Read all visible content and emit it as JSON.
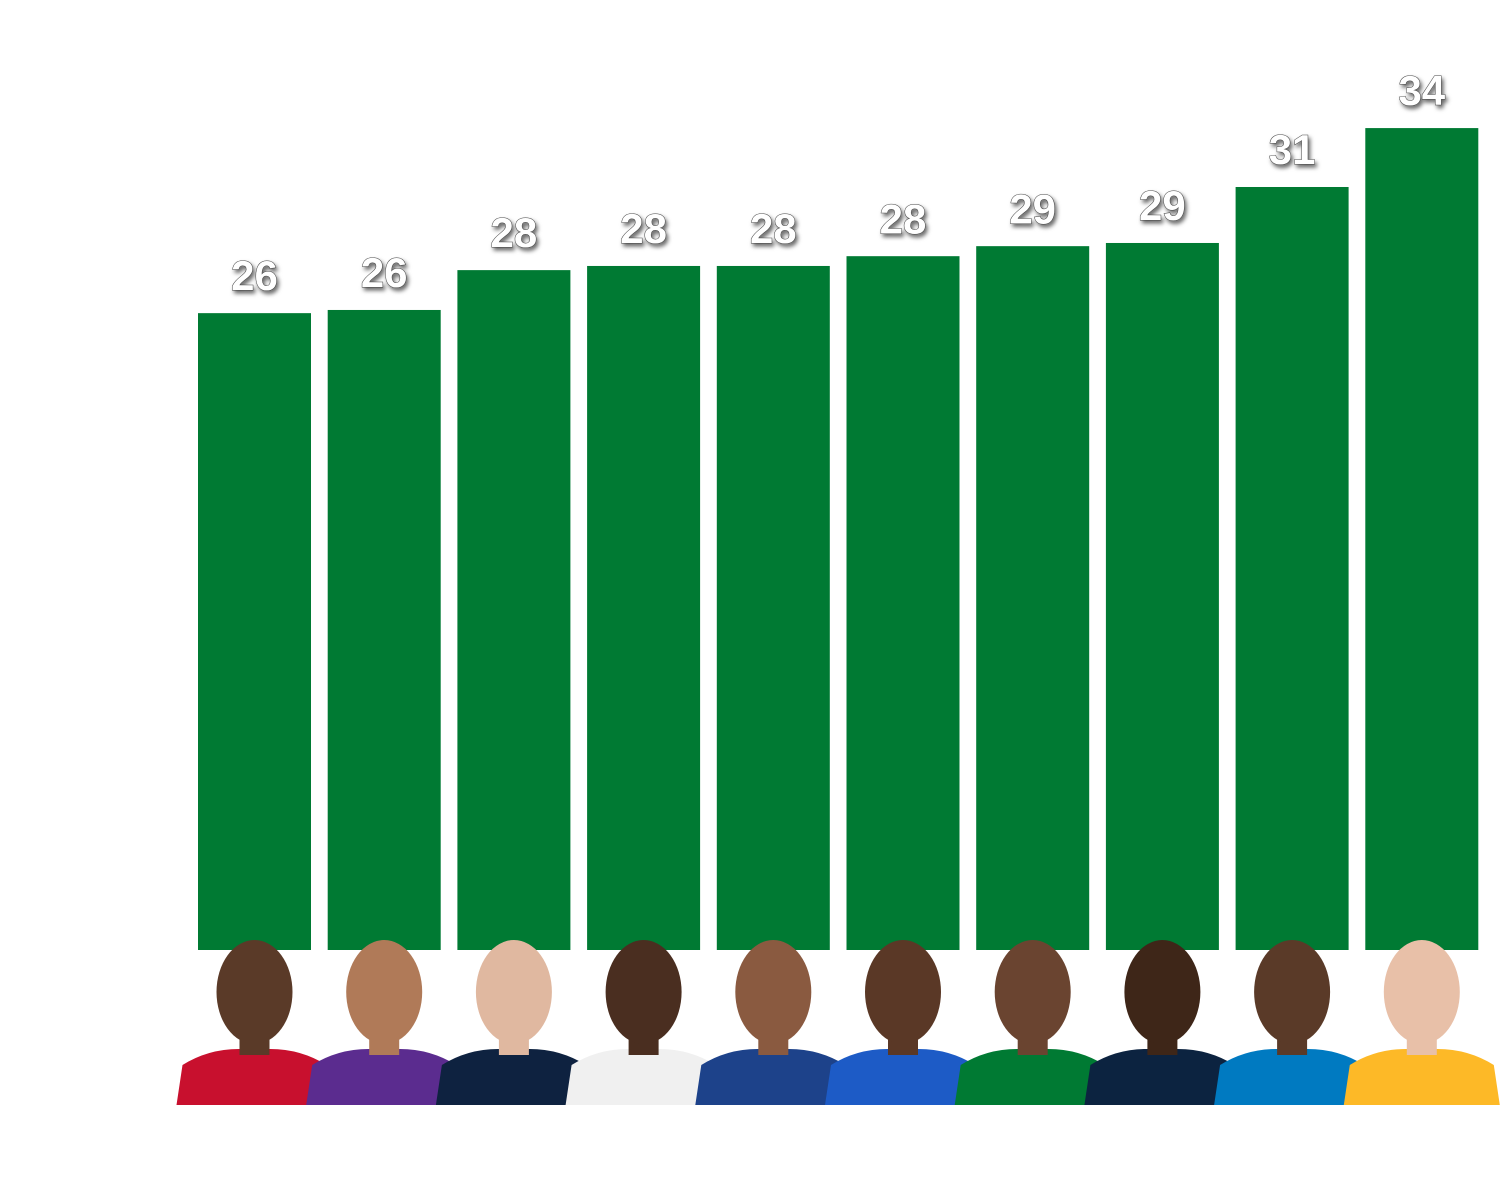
{
  "chart_data": {
    "type": "bar",
    "categories": [
      null,
      null,
      null,
      null,
      null,
      null,
      null,
      null,
      null,
      null
    ],
    "values": [
      26.05,
      26.18,
      27.81,
      27.98,
      27.98,
      28.38,
      28.79,
      28.92,
      31.21,
      33.62
    ],
    "value_labels": [
      "26",
      "26",
      "28",
      "28",
      "28",
      "28",
      "29",
      "29",
      "31",
      "34"
    ],
    "color": "#007a33",
    "ylim": [
      0,
      38
    ]
  }
}
